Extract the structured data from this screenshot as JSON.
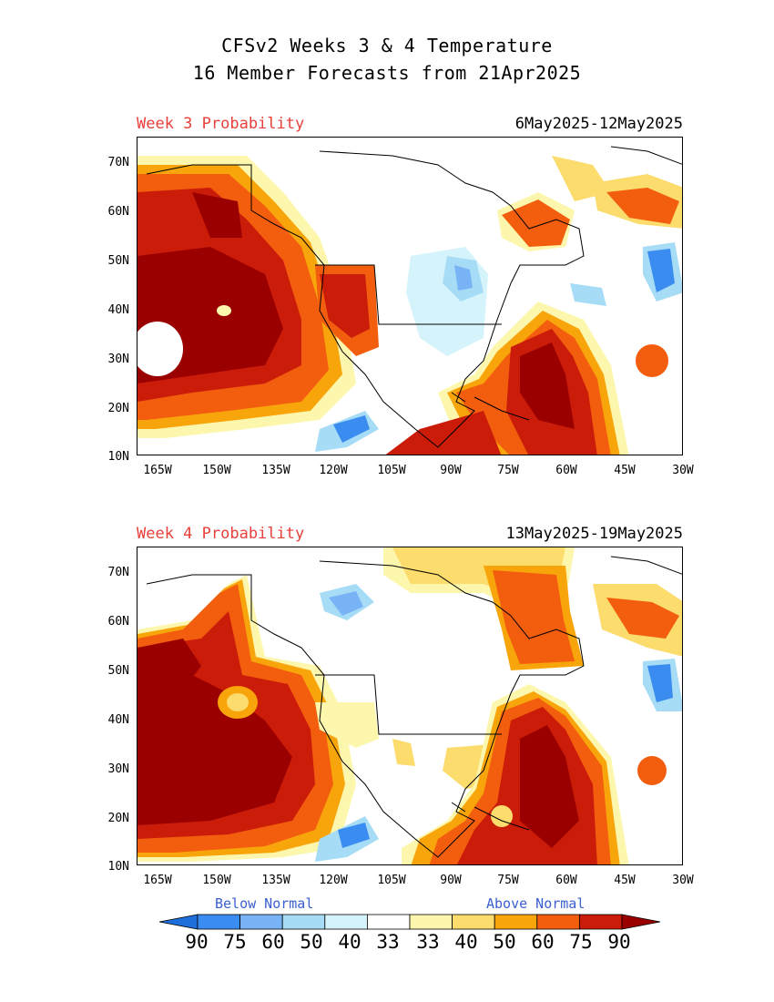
{
  "title_line1": "CFSv2 Weeks 3 & 4 Temperature",
  "title_line2": "16 Member Forecasts from 21Apr2025",
  "panels": [
    {
      "label": "Week 3 Probability",
      "dates": "6May2025-12May2025"
    },
    {
      "label": "Week 4 Probability",
      "dates": "13May2025-19May2025"
    }
  ],
  "y_ticks": [
    "70N",
    "60N",
    "50N",
    "40N",
    "30N",
    "20N",
    "10N"
  ],
  "x_ticks": [
    "165W",
    "150W",
    "135W",
    "120W",
    "105W",
    "90W",
    "75W",
    "60W",
    "45W",
    "30W"
  ],
  "legend": {
    "below_label": "Below Normal",
    "above_label": "Above Normal",
    "values": [
      "90",
      "75",
      "60",
      "50",
      "40",
      "33",
      "33",
      "40",
      "50",
      "60",
      "75",
      "90"
    ],
    "colors": [
      "#1e6edc",
      "#3a8cf0",
      "#78b4f5",
      "#a6dcf5",
      "#d4f3fa",
      "#ffffff",
      "#fdf7ad",
      "#fbdc6c",
      "#f8a50c",
      "#f25d0e",
      "#cb1b09",
      "#9b0000"
    ]
  }
}
